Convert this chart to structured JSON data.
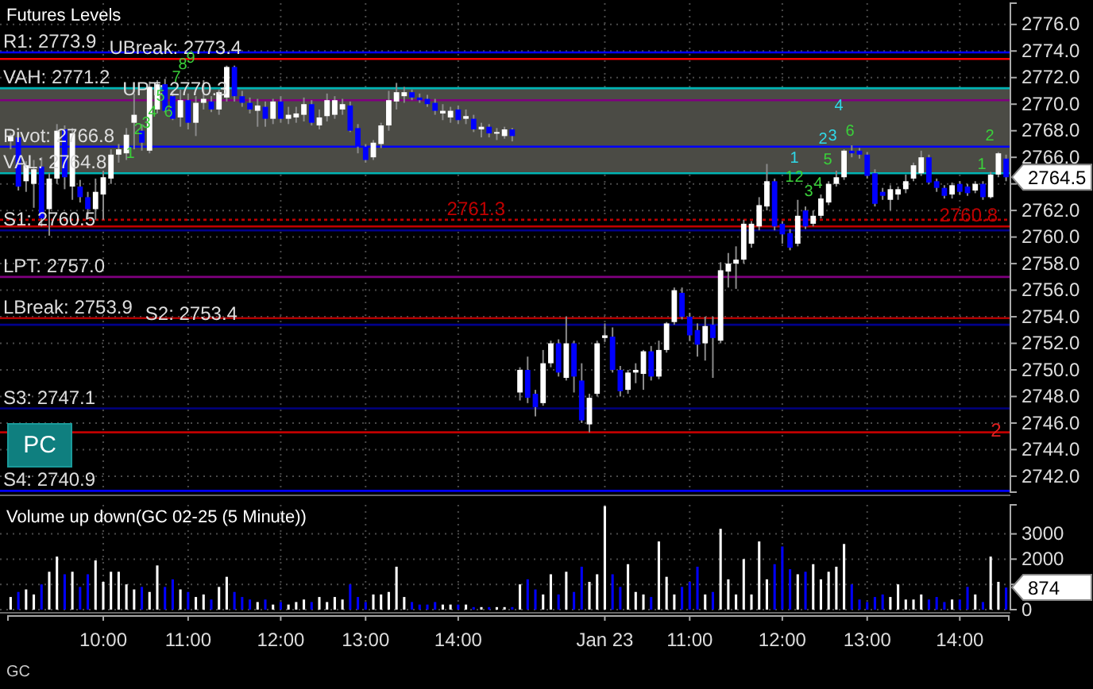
{
  "chart_data": [
    {
      "type": "candlestick",
      "title": "Futures Levels",
      "tick_labels": "y",
      "grid": true,
      "categories": [
        null,
        null,
        null,
        null,
        null,
        null,
        null,
        null,
        null,
        null,
        null,
        null,
        null,
        null,
        null,
        null,
        null,
        null,
        null,
        null,
        null,
        null,
        null,
        null,
        null,
        null,
        null,
        null,
        null,
        null,
        null,
        null,
        null,
        null,
        null,
        null,
        null,
        null,
        null,
        null,
        null,
        null,
        null,
        null,
        null,
        null,
        null,
        null,
        null,
        null,
        null,
        null,
        null,
        null,
        null,
        null,
        null,
        null,
        null,
        null,
        null,
        null,
        null,
        null,
        null,
        null,
        null,
        null,
        null,
        null,
        null,
        null,
        null,
        null,
        null,
        null,
        null,
        null,
        null,
        null,
        null,
        null,
        null,
        null,
        null,
        null,
        null,
        null,
        null,
        null,
        null,
        null,
        null,
        null,
        null,
        null,
        null,
        null,
        null,
        null,
        null,
        null,
        null,
        null,
        null,
        null,
        null,
        null,
        null,
        null,
        null,
        null,
        null,
        null,
        null,
        null,
        null,
        null,
        null,
        null,
        null,
        null,
        null,
        null,
        null,
        null,
        null,
        null,
        null,
        null
      ],
      "ohlc": [
        [
          2767.2,
          2767.8,
          2766.6,
          2767.6
        ],
        [
          2767.5,
          2767.9,
          2763.5,
          2763.8
        ],
        [
          2764.2,
          2765.7,
          2763.4,
          2765.4
        ],
        [
          2764.0,
          2765.8,
          2762.2,
          2765.1
        ],
        [
          2765.3,
          2766.0,
          2760.8,
          2761.4
        ],
        [
          2762.1,
          2764.8,
          2760.1,
          2764.4
        ],
        [
          2764.4,
          2768.5,
          2764.0,
          2768.0
        ],
        [
          2768.1,
          2768.4,
          2763.6,
          2764.5
        ],
        [
          2763.8,
          2768.2,
          2762.8,
          2767.8
        ],
        [
          2763.8,
          2764.3,
          2762.6,
          2763.0
        ],
        [
          2763.0,
          2763.4,
          2761.5,
          2762.1
        ],
        [
          2762.1,
          2764.4,
          2761.3,
          2763.4
        ],
        [
          2763.2,
          2765.0,
          2761.3,
          2764.5
        ],
        [
          2764.4,
          2766.6,
          2764.0,
          2766.2
        ],
        [
          2766.2,
          2767.0,
          2765.6,
          2766.6
        ],
        [
          2766.3,
          2768.2,
          2765.8,
          2767.7
        ],
        [
          2768.6,
          2770.8,
          2766.6,
          2769.2
        ],
        [
          2768.0,
          2768.5,
          2766.5,
          2767.1
        ],
        [
          2766.5,
          2771.7,
          2766.3,
          2771.3
        ],
        [
          2769.6,
          2771.8,
          2769.3,
          2771.5
        ],
        [
          2771.5,
          2771.9,
          2769.4,
          2769.5
        ],
        [
          2770.6,
          2771.0,
          2768.8,
          2768.9
        ],
        [
          2769.0,
          2771.1,
          2768.3,
          2770.3
        ],
        [
          2770.3,
          2770.8,
          2768.1,
          2768.6
        ],
        [
          2768.6,
          2770.6,
          2767.6,
          2770.1
        ],
        [
          2770.1,
          2771.8,
          2769.6,
          2770.4
        ],
        [
          2770.2,
          2770.6,
          2769.4,
          2769.6
        ],
        [
          2769.6,
          2771.1,
          2769.2,
          2770.9
        ],
        [
          2770.5,
          2772.9,
          2770.2,
          2772.8
        ],
        [
          2772.8,
          2772.9,
          2770.2,
          2770.6
        ],
        [
          2770.6,
          2771.0,
          2769.8,
          2770.1
        ],
        [
          2770.1,
          2770.5,
          2769.3,
          2769.6
        ],
        [
          2769.5,
          2770.4,
          2768.3,
          2769.9
        ],
        [
          2769.8,
          2770.2,
          2768.3,
          2768.9
        ],
        [
          2768.9,
          2770.4,
          2768.5,
          2770.2
        ],
        [
          2770.2,
          2770.6,
          2768.6,
          2768.9
        ],
        [
          2768.9,
          2769.8,
          2768.5,
          2769.2
        ],
        [
          2769.0,
          2769.8,
          2768.6,
          2769.3
        ],
        [
          2769.2,
          2770.5,
          2768.7,
          2770.0
        ],
        [
          2770.0,
          2770.3,
          2768.4,
          2768.6
        ],
        [
          2768.4,
          2769.6,
          2768.1,
          2769.0
        ],
        [
          2769.1,
          2770.8,
          2768.7,
          2770.3
        ],
        [
          2769.2,
          2770.6,
          2768.9,
          2770.3
        ],
        [
          2769.6,
          2770.4,
          2769.2,
          2770.0
        ],
        [
          2769.9,
          2770.2,
          2767.9,
          2768.0
        ],
        [
          2768.2,
          2768.5,
          2766.3,
          2766.8
        ],
        [
          2766.8,
          2767.0,
          2765.6,
          2765.8
        ],
        [
          2766.0,
          2767.3,
          2765.8,
          2767.1
        ],
        [
          2767.0,
          2768.6,
          2766.7,
          2768.4
        ],
        [
          2768.4,
          2771.0,
          2768.0,
          2770.3
        ],
        [
          2770.2,
          2771.6,
          2769.6,
          2770.9
        ],
        [
          2770.6,
          2771.3,
          2770.1,
          2770.9
        ],
        [
          2770.9,
          2771.1,
          2770.3,
          2770.5
        ],
        [
          2770.5,
          2770.8,
          2770.1,
          2770.3
        ],
        [
          2770.4,
          2770.7,
          2769.8,
          2770.0
        ],
        [
          2770.1,
          2770.4,
          2769.2,
          2769.5
        ],
        [
          2769.3,
          2770.0,
          2768.8,
          2769.5
        ],
        [
          2769.0,
          2769.8,
          2768.6,
          2769.5
        ],
        [
          2769.6,
          2769.9,
          2768.5,
          2768.8
        ],
        [
          2768.9,
          2769.6,
          2768.5,
          2769.1
        ],
        [
          2768.9,
          2769.2,
          2767.9,
          2768.1
        ],
        [
          2768.1,
          2768.6,
          2767.5,
          2768.3
        ],
        [
          2768.3,
          2768.5,
          2767.5,
          2767.8
        ],
        [
          2767.8,
          2768.2,
          2767.3,
          2767.9
        ],
        [
          2767.6,
          2768.3,
          2767.4,
          2768.1
        ],
        [
          2768.1,
          2768.2,
          2767.2,
          2767.6
        ],
        [
          2748.3,
          2750.2,
          2747.7,
          2750.0
        ],
        [
          2750.0,
          2751.0,
          2747.5,
          2747.9
        ],
        [
          2748.2,
          2748.5,
          2746.5,
          2747.2
        ],
        [
          2747.5,
          2751.5,
          2747.3,
          2750.5
        ],
        [
          2750.5,
          2752.2,
          2750.2,
          2752.0
        ],
        [
          2752.0,
          2752.3,
          2749.5,
          2749.8
        ],
        [
          2749.4,
          2754.0,
          2749.2,
          2752.0
        ],
        [
          2752.0,
          2752.2,
          2748.3,
          2749.5
        ],
        [
          2749.2,
          2750.5,
          2746.0,
          2746.2
        ],
        [
          2745.9,
          2748.2,
          2745.3,
          2747.9
        ],
        [
          2748.2,
          2752.2,
          2748.0,
          2752.0
        ],
        [
          2752.4,
          2753.5,
          2752.1,
          2752.6
        ],
        [
          2752.5,
          2753.2,
          2749.8,
          2750.0
        ],
        [
          2750.0,
          2750.3,
          2748.0,
          2748.4
        ],
        [
          2748.5,
          2750.0,
          2748.2,
          2749.8
        ],
        [
          2749.8,
          2750.5,
          2749.0,
          2750.0
        ],
        [
          2749.7,
          2751.5,
          2748.5,
          2751.4
        ],
        [
          2751.4,
          2751.8,
          2749.2,
          2749.5
        ],
        [
          2749.5,
          2752.2,
          2749.3,
          2751.5
        ],
        [
          2751.5,
          2753.6,
          2751.3,
          2753.5
        ],
        [
          2753.6,
          2756.2,
          2753.4,
          2756.0
        ],
        [
          2755.8,
          2756.2,
          2753.8,
          2754.0
        ],
        [
          2754.0,
          2754.3,
          2752.2,
          2752.6
        ],
        [
          2753.0,
          2753.5,
          2751.0,
          2751.9
        ],
        [
          2752.0,
          2754.0,
          2750.7,
          2753.3
        ],
        [
          2753.4,
          2754.0,
          2749.4,
          2752.4
        ],
        [
          2752.2,
          2758.1,
          2752.0,
          2757.5
        ],
        [
          2757.4,
          2758.8,
          2756.2,
          2758.0
        ],
        [
          2758.0,
          2759.3,
          2756.1,
          2758.3
        ],
        [
          2758.3,
          2761.3,
          2758.0,
          2761.0
        ],
        [
          2759.5,
          2761.2,
          2759.2,
          2761.0
        ],
        [
          2760.8,
          2763.0,
          2760.5,
          2762.4
        ],
        [
          2762.3,
          2765.5,
          2762.0,
          2764.2
        ],
        [
          2764.2,
          2764.4,
          2760.5,
          2760.8
        ],
        [
          2761.0,
          2761.2,
          2759.5,
          2760.2
        ],
        [
          2760.3,
          2760.6,
          2759.0,
          2759.2
        ],
        [
          2759.5,
          2762.8,
          2759.3,
          2761.6
        ],
        [
          2762.0,
          2762.3,
          2760.6,
          2760.8
        ],
        [
          2761.0,
          2762.0,
          2760.8,
          2761.6
        ],
        [
          2761.6,
          2763.2,
          2761.4,
          2762.9
        ],
        [
          2762.6,
          2764.2,
          2762.4,
          2764.0
        ],
        [
          2764.0,
          2765.0,
          2763.8,
          2764.5
        ],
        [
          2764.5,
          2766.6,
          2764.3,
          2766.5
        ],
        [
          2766.5,
          2766.9,
          2766.0,
          2766.3
        ],
        [
          2766.5,
          2766.7,
          2765.9,
          2766.2
        ],
        [
          2766.2,
          2766.4,
          2764.4,
          2764.6
        ],
        [
          2764.8,
          2765.1,
          2762.3,
          2762.5
        ],
        [
          2763.4,
          2763.7,
          2762.8,
          2763.1
        ],
        [
          2762.8,
          2763.9,
          2762.0,
          2763.6
        ],
        [
          2763.2,
          2763.8,
          2762.8,
          2763.6
        ],
        [
          2763.6,
          2764.7,
          2763.3,
          2764.2
        ],
        [
          2764.4,
          2765.6,
          2764.2,
          2765.4
        ],
        [
          2764.8,
          2766.5,
          2764.6,
          2766.0
        ],
        [
          2766.0,
          2766.2,
          2764.0,
          2764.1
        ],
        [
          2764.2,
          2764.4,
          2763.4,
          2763.7
        ],
        [
          2763.7,
          2763.9,
          2762.9,
          2763.1
        ],
        [
          2763.2,
          2764.1,
          2762.9,
          2763.9
        ],
        [
          2764.0,
          2764.2,
          2763.2,
          2763.4
        ],
        [
          2763.8,
          2764.0,
          2763.1,
          2763.3
        ],
        [
          2763.5,
          2764.2,
          2763.3,
          2764.0
        ],
        [
          2764.0,
          2764.2,
          2762.8,
          2763.0
        ],
        [
          2763.0,
          2764.9,
          2762.9,
          2764.7
        ],
        [
          2764.7,
          2766.4,
          2764.5,
          2766.3
        ],
        [
          2765.9,
          2766.2,
          2764.2,
          2764.5
        ]
      ],
      "colors": [
        "#ffffff",
        "#0000ff",
        "#ffffff",
        "#ffffff",
        "#0000ff",
        "#ffffff",
        "#ffffff",
        "#0000ff",
        "#ffffff",
        "#0000ff",
        "#0000ff",
        "#ffffff",
        "#ffffff",
        "#ffffff",
        "#ffffff",
        "#ffffff",
        "#ffffff",
        "#0000ff",
        "#ffffff",
        "#ffffff",
        "#0000ff",
        "#0000ff",
        "#ffffff",
        "#0000ff",
        "#ffffff",
        "#ffffff",
        "#0000ff",
        "#ffffff",
        "#ffffff",
        "#0000ff",
        "#0000ff",
        "#0000ff",
        "#ffffff",
        "#0000ff",
        "#ffffff",
        "#0000ff",
        "#ffffff",
        "#ffffff",
        "#ffffff",
        "#0000ff",
        "#ffffff",
        "#ffffff",
        "#ffffff",
        "#ffffff",
        "#0000ff",
        "#0000ff",
        "#0000ff",
        "#ffffff",
        "#ffffff",
        "#ffffff",
        "#ffffff",
        "#ffffff",
        "#0000ff",
        "#0000ff",
        "#0000ff",
        "#0000ff",
        "#ffffff",
        "#ffffff",
        "#0000ff",
        "#ffffff",
        "#0000ff",
        "#ffffff",
        "#0000ff",
        "#ffffff",
        "#ffffff",
        "#0000ff",
        "#ffffff",
        "#0000ff",
        "#0000ff",
        "#ffffff",
        "#ffffff",
        "#0000ff",
        "#ffffff",
        "#0000ff",
        "#0000ff",
        "#ffffff",
        "#ffffff",
        "#ffffff",
        "#0000ff",
        "#0000ff",
        "#ffffff",
        "#ffffff",
        "#ffffff",
        "#0000ff",
        "#ffffff",
        "#ffffff",
        "#ffffff",
        "#0000ff",
        "#0000ff",
        "#0000ff",
        "#ffffff",
        "#0000ff",
        "#ffffff",
        "#ffffff",
        "#ffffff",
        "#ffffff",
        "#ffffff",
        "#ffffff",
        "#ffffff",
        "#0000ff",
        "#0000ff",
        "#0000ff",
        "#ffffff",
        "#0000ff",
        "#ffffff",
        "#ffffff",
        "#ffffff",
        "#ffffff",
        "#ffffff",
        "#0000ff",
        "#0000ff",
        "#0000ff",
        "#0000ff",
        "#0000ff",
        "#ffffff",
        "#ffffff",
        "#ffffff",
        "#ffffff",
        "#ffffff",
        "#0000ff",
        "#0000ff",
        "#0000ff",
        "#ffffff",
        "#0000ff",
        "#0000ff",
        "#ffffff",
        "#0000ff",
        "#ffffff",
        "#ffffff",
        "#0000ff"
      ],
      "ylim": [
        2740.8,
        2777.6
      ],
      "yticks": [
        {
          "value": 2742,
          "label": "2742.0"
        },
        {
          "value": 2744,
          "label": "2744.0"
        },
        {
          "value": 2746,
          "label": "2746.0"
        },
        {
          "value": 2748,
          "label": "2748.0"
        },
        {
          "value": 2750,
          "label": "2750.0"
        },
        {
          "value": 2752,
          "label": "2752.0"
        },
        {
          "value": 2754,
          "label": "2754.0"
        },
        {
          "value": 2756,
          "label": "2756.0"
        },
        {
          "value": 2758,
          "label": "2758.0"
        },
        {
          "value": 2760,
          "label": "2760.0"
        },
        {
          "value": 2762,
          "label": "2762.0"
        },
        {
          "value": 2764,
          "label": null
        },
        {
          "value": 2766,
          "label": "2766.0"
        },
        {
          "value": 2768,
          "label": "2768.0"
        },
        {
          "value": 2770,
          "label": "2770.0"
        },
        {
          "value": 2772,
          "label": "2772.0"
        },
        {
          "value": 2774,
          "label": "2774.0"
        },
        {
          "value": 2776,
          "label": "2776.0"
        }
      ],
      "bands": [
        {
          "axis": "y",
          "from": 2764.8,
          "to": 2771.2,
          "color": "#4b4b45"
        }
      ],
      "ref_lines": [
        {
          "axis": "y",
          "value": 2773.9,
          "label": "R1: 2773.9",
          "color": "#0000ff"
        },
        {
          "axis": "y",
          "value": 2773.4,
          "label": "UBreak: 2773.4",
          "color": "#ff0000"
        },
        {
          "axis": "y",
          "value": 2771.2,
          "label": "VAH: 2771.2",
          "color": "#00b4b4"
        },
        {
          "axis": "y",
          "value": 2770.3,
          "label": "UPT: 2770.3",
          "color": "#800080"
        },
        {
          "axis": "y",
          "value": 2766.8,
          "label": "Pivot: 2766.8",
          "color": "#0000ff"
        },
        {
          "axis": "y",
          "value": 2764.8,
          "label": "VAL: 2764.8",
          "color": "#00b4b4"
        },
        {
          "axis": "y",
          "value": 2760.5,
          "label": "S1: 2760.5",
          "color": "#00008b"
        },
        {
          "axis": "y",
          "value": 2757.0,
          "label": "LPT: 2757.0",
          "color": "#800080"
        },
        {
          "axis": "y",
          "value": 2753.9,
          "label": "LBreak: 2753.9",
          "color": "#b00000"
        },
        {
          "axis": "y",
          "value": 2753.4,
          "label": "S2: 2753.4",
          "color": "#00008b"
        },
        {
          "axis": "y",
          "value": 2747.1,
          "label": "S3: 2747.1",
          "color": "#000080"
        },
        {
          "axis": "y",
          "value": 2740.9,
          "label": "S4: 2740.9",
          "color": "#0000ff"
        },
        {
          "axis": "y",
          "value": 2761.3,
          "label": "2761.3",
          "color": "#c00000",
          "line_style": "dotted"
        },
        {
          "axis": "y",
          "value": 2760.8,
          "label": "2760.8",
          "color": "#c00000",
          "line_style": "solid"
        },
        {
          "axis": "y",
          "value": 2745.3,
          "color": "#c00000",
          "line_style": "solid"
        }
      ],
      "annotations": [
        "1",
        "2",
        "3",
        "4",
        "5",
        "6",
        "7",
        "8",
        "9",
        "1",
        "2",
        "3",
        "4",
        "1",
        "2",
        "3",
        "4",
        "5",
        "6",
        "1",
        "2",
        "PC",
        "2764.5",
        "2"
      ]
    },
    {
      "type": "bar",
      "title": "Volume up down(GC 02-25 (5 Minute))",
      "grid": true,
      "categories": [
        null,
        null,
        null,
        null,
        null,
        null,
        null,
        null,
        null,
        null,
        null,
        null,
        "10:00",
        null,
        null,
        null,
        null,
        null,
        null,
        null,
        null,
        null,
        null,
        "11:00",
        null,
        null,
        null,
        null,
        null,
        null,
        null,
        null,
        null,
        null,
        null,
        "12:00",
        null,
        null,
        null,
        null,
        null,
        null,
        null,
        null,
        null,
        null,
        "13:00",
        null,
        null,
        null,
        null,
        null,
        null,
        null,
        null,
        null,
        null,
        null,
        "14:00",
        null,
        null,
        null,
        null,
        null,
        null,
        null,
        null,
        null,
        null,
        null,
        null,
        null,
        null,
        null,
        null,
        null,
        null,
        "Jan 23",
        null,
        null,
        null,
        null,
        null,
        null,
        null,
        null,
        null,
        null,
        "11:00",
        null,
        null,
        null,
        null,
        null,
        null,
        null,
        null,
        null,
        null,
        null,
        "12:00",
        null,
        null,
        null,
        null,
        null,
        null,
        null,
        null,
        null,
        null,
        "13:00",
        null,
        null,
        null,
        null,
        null,
        null,
        null,
        null,
        null,
        null,
        null,
        "14:00",
        null,
        null,
        null,
        null,
        null,
        null
      ],
      "values": [
        500,
        700,
        800,
        600,
        1000,
        1500,
        2100,
        1400,
        1500,
        900,
        1400,
        1950,
        1100,
        1500,
        1500,
        1000,
        800,
        900,
        700,
        1750,
        900,
        1200,
        800,
        700,
        500,
        600,
        400,
        900,
        1300,
        700,
        500,
        400,
        300,
        400,
        200,
        300,
        200,
        300,
        400,
        300,
        500,
        300,
        500,
        400,
        1000,
        500,
        300,
        600,
        600,
        700,
        1700,
        500,
        300,
        200,
        200,
        300,
        200,
        200,
        200,
        200,
        100,
        100,
        100,
        100,
        100,
        100,
        1000,
        1200,
        800,
        600,
        1400,
        600,
        1500,
        700,
        1700,
        1100,
        1400,
        4100,
        1400,
        900,
        1800,
        700,
        600,
        500,
        2700,
        1300,
        600,
        900,
        1100,
        1700,
        600,
        700,
        3200,
        1200,
        600,
        2000,
        600,
        2700,
        1200,
        1800,
        2500,
        1600,
        1400,
        1500,
        1800,
        1200,
        1500,
        1700,
        2600,
        1000,
        400,
        300,
        500,
        600,
        500,
        1000,
        400,
        400,
        600,
        400,
        500,
        300,
        400,
        400,
        900,
        600,
        300,
        2100,
        1100,
        874
      ],
      "colors": [
        "#ffffff",
        "#0000ff",
        "#ffffff",
        "#ffffff",
        "#0000ff",
        "#ffffff",
        "#ffffff",
        "#0000ff",
        "#ffffff",
        "#0000ff",
        "#0000ff",
        "#ffffff",
        "#ffffff",
        "#ffffff",
        "#ffffff",
        "#ffffff",
        "#ffffff",
        "#0000ff",
        "#ffffff",
        "#ffffff",
        "#0000ff",
        "#0000ff",
        "#ffffff",
        "#0000ff",
        "#ffffff",
        "#ffffff",
        "#0000ff",
        "#ffffff",
        "#ffffff",
        "#0000ff",
        "#0000ff",
        "#0000ff",
        "#ffffff",
        "#0000ff",
        "#ffffff",
        "#0000ff",
        "#ffffff",
        "#ffffff",
        "#ffffff",
        "#0000ff",
        "#ffffff",
        "#ffffff",
        "#ffffff",
        "#ffffff",
        "#0000ff",
        "#0000ff",
        "#0000ff",
        "#ffffff",
        "#ffffff",
        "#ffffff",
        "#ffffff",
        "#ffffff",
        "#0000ff",
        "#0000ff",
        "#0000ff",
        "#0000ff",
        "#ffffff",
        "#ffffff",
        "#0000ff",
        "#ffffff",
        "#0000ff",
        "#ffffff",
        "#0000ff",
        "#ffffff",
        "#ffffff",
        "#0000ff",
        "#ffffff",
        "#0000ff",
        "#0000ff",
        "#ffffff",
        "#ffffff",
        "#0000ff",
        "#ffffff",
        "#0000ff",
        "#0000ff",
        "#ffffff",
        "#ffffff",
        "#ffffff",
        "#0000ff",
        "#0000ff",
        "#ffffff",
        "#ffffff",
        "#ffffff",
        "#0000ff",
        "#ffffff",
        "#ffffff",
        "#ffffff",
        "#0000ff",
        "#0000ff",
        "#0000ff",
        "#ffffff",
        "#0000ff",
        "#ffffff",
        "#ffffff",
        "#ffffff",
        "#ffffff",
        "#ffffff",
        "#ffffff",
        "#ffffff",
        "#0000ff",
        "#0000ff",
        "#0000ff",
        "#ffffff",
        "#0000ff",
        "#ffffff",
        "#ffffff",
        "#ffffff",
        "#ffffff",
        "#ffffff",
        "#0000ff",
        "#0000ff",
        "#0000ff",
        "#0000ff",
        "#0000ff",
        "#ffffff",
        "#ffffff",
        "#ffffff",
        "#ffffff",
        "#ffffff",
        "#0000ff",
        "#0000ff",
        "#0000ff",
        "#ffffff",
        "#0000ff",
        "#0000ff",
        "#ffffff",
        "#0000ff",
        "#ffffff",
        "#ffffff",
        "#0000ff"
      ],
      "ylim": [
        0,
        4150
      ],
      "yticks": [
        0,
        {
          "value": 1000,
          "label": null
        },
        2000,
        3000
      ],
      "annotations": [
        "GC",
        "874"
      ]
    }
  ]
}
